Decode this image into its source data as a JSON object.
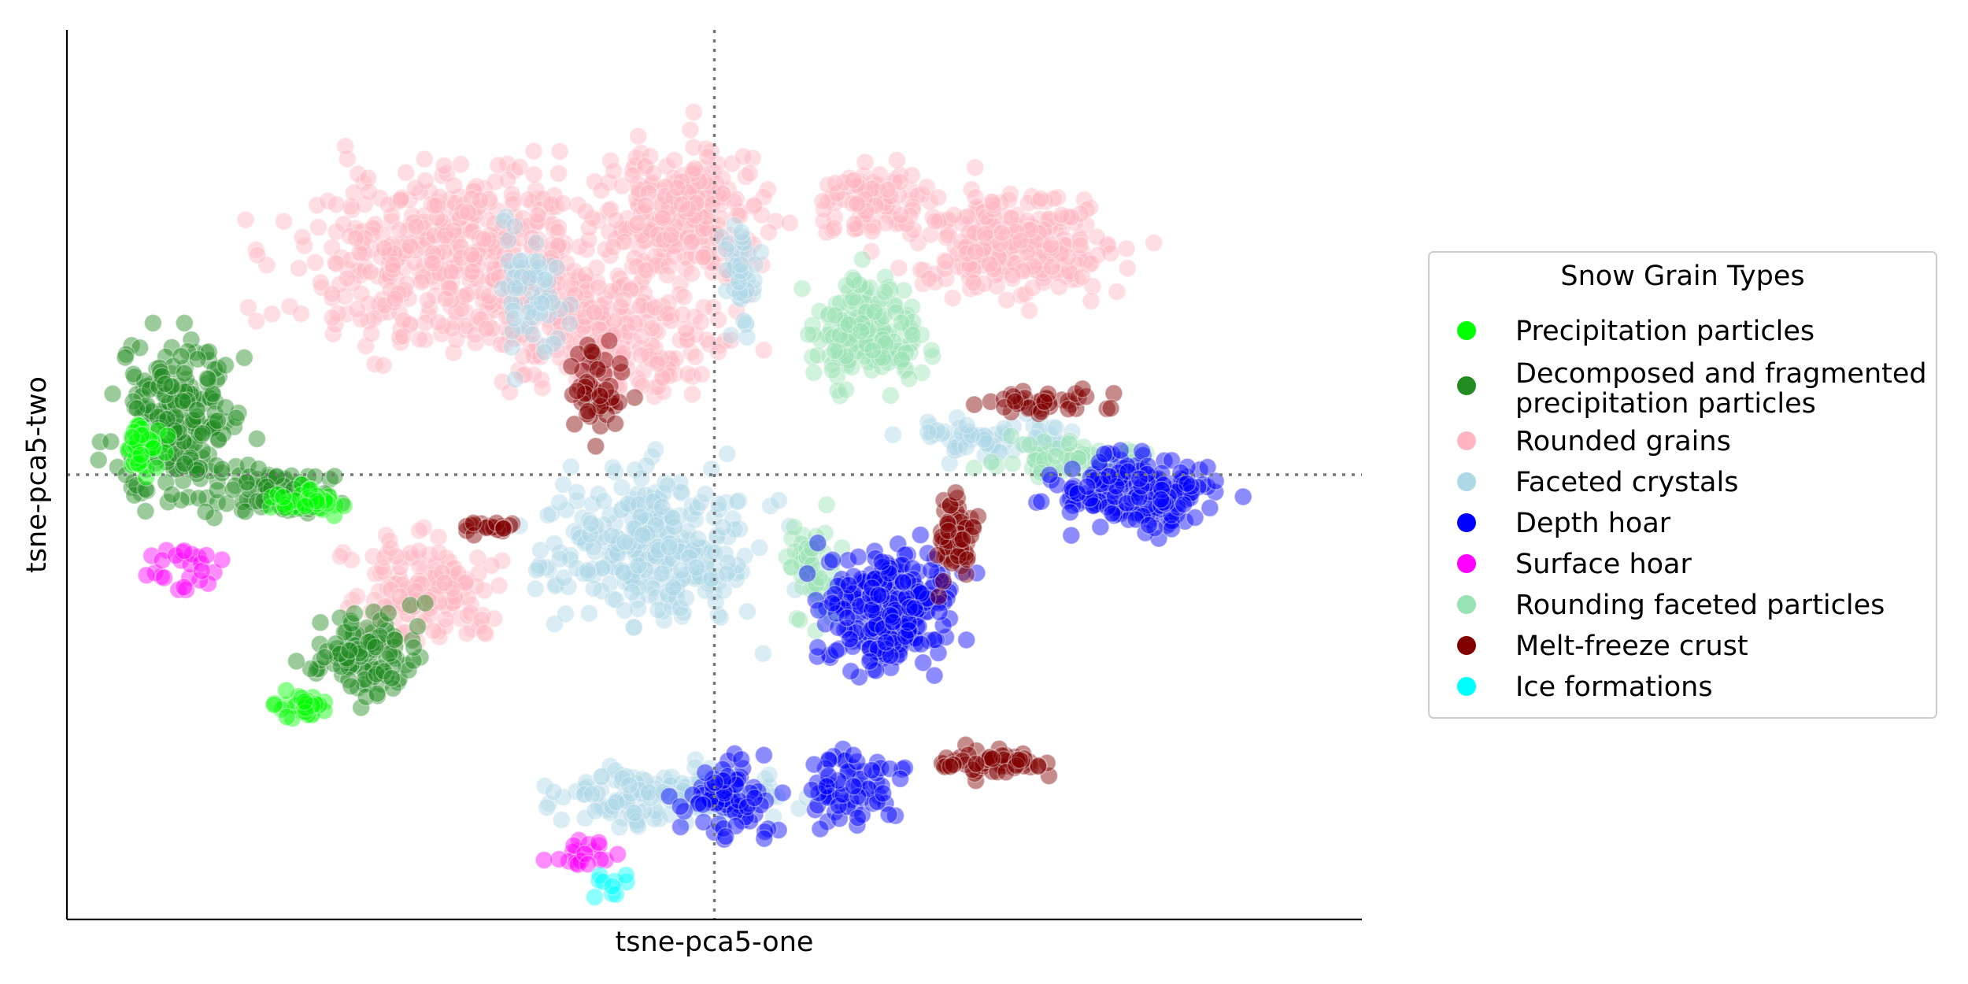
{
  "chart_data": {
    "type": "scatter",
    "title": "",
    "xlabel": "tsne-pca5-one",
    "ylabel": "tsne-pca5-two",
    "xlim": [
      -100,
      100
    ],
    "ylim": [
      -100,
      100
    ],
    "grid": false,
    "reference_lines": {
      "x": 0,
      "y": 0,
      "style": "dotted"
    },
    "legend": {
      "title": "Snow Grain Types",
      "position": "right",
      "entries": [
        {
          "label": "Precipitation particles",
          "color": "#00ff00"
        },
        {
          "label": "Decomposed and fragmented precipitation particles",
          "color": "#228b22"
        },
        {
          "label": "Rounded grains",
          "color": "#ffb6c1"
        },
        {
          "label": "Faceted crystals",
          "color": "#add8e6"
        },
        {
          "label": "Depth hoar",
          "color": "#0000ff"
        },
        {
          "label": "Surface hoar",
          "color": "#ff00ff"
        },
        {
          "label": "Rounding faceted particles",
          "color": "#98e2b3"
        },
        {
          "label": "Melt-freeze crust",
          "color": "#800000"
        },
        {
          "label": "Ice formations",
          "color": "#00ffff"
        }
      ]
    },
    "series": [
      {
        "class_index": 2,
        "regions": [
          {
            "center": [
              -38,
              48
            ],
            "spread": [
              26,
              20
            ],
            "count": 520
          },
          {
            "center": [
              -4,
              58
            ],
            "spread": [
              12,
              16
            ],
            "count": 260
          },
          {
            "center": [
              -15,
              30
            ],
            "spread": [
              16,
              12
            ],
            "count": 220
          },
          {
            "center": [
              46,
              52
            ],
            "spread": [
              16,
              12
            ],
            "count": 260
          },
          {
            "center": [
              24,
              62
            ],
            "spread": [
              8,
              8
            ],
            "count": 90
          },
          {
            "center": [
              -45,
              -26
            ],
            "spread": [
              12,
              12
            ],
            "count": 160
          }
        ]
      },
      {
        "class_index": 3,
        "regions": [
          {
            "center": [
              -10,
              -16
            ],
            "spread": [
              15,
              16
            ],
            "count": 300
          },
          {
            "center": [
              -8,
              -72
            ],
            "spread": [
              18,
              7
            ],
            "count": 140
          },
          {
            "center": [
              -28,
              42
            ],
            "spread": [
              5,
              16
            ],
            "count": 60
          },
          {
            "center": [
              44,
              8
            ],
            "spread": [
              14,
              5
            ],
            "count": 70
          },
          {
            "center": [
              4,
              45
            ],
            "spread": [
              3,
              12
            ],
            "count": 40
          }
        ]
      },
      {
        "class_index": 6,
        "regions": [
          {
            "center": [
              24,
              32
            ],
            "spread": [
              8,
              12
            ],
            "count": 170
          },
          {
            "center": [
              15,
              -22
            ],
            "spread": [
              4,
              12
            ],
            "count": 50
          },
          {
            "center": [
              55,
              4
            ],
            "spread": [
              12,
              4
            ],
            "count": 60
          }
        ]
      },
      {
        "class_index": 1,
        "regions": [
          {
            "center": [
              -83,
              12
            ],
            "spread": [
              9,
              18
            ],
            "count": 230
          },
          {
            "center": [
              -66,
              -4
            ],
            "spread": [
              8,
              5
            ],
            "count": 80
          },
          {
            "center": [
              -54,
              -40
            ],
            "spread": [
              9,
              10
            ],
            "count": 110
          }
        ]
      },
      {
        "class_index": 0,
        "regions": [
          {
            "center": [
              -88,
              6
            ],
            "spread": [
              3,
              5
            ],
            "count": 40
          },
          {
            "center": [
              -63,
              -6
            ],
            "spread": [
              5,
              3
            ],
            "count": 40
          },
          {
            "center": [
              -64,
              -52
            ],
            "spread": [
              5,
              3
            ],
            "count": 30
          }
        ]
      },
      {
        "class_index": 4,
        "regions": [
          {
            "center": [
              27,
              -30
            ],
            "spread": [
              10,
              13
            ],
            "count": 260
          },
          {
            "center": [
              66,
              -4
            ],
            "spread": [
              13,
              9
            ],
            "count": 170
          },
          {
            "center": [
              2,
              -72
            ],
            "spread": [
              7,
              9
            ],
            "count": 80
          },
          {
            "center": [
              22,
              -70
            ],
            "spread": [
              7,
              8
            ],
            "count": 70
          }
        ]
      },
      {
        "class_index": 7,
        "regions": [
          {
            "center": [
              37,
              -15
            ],
            "spread": [
              3,
              10
            ],
            "count": 70
          },
          {
            "center": [
              43,
              -65
            ],
            "spread": [
              9,
              3
            ],
            "count": 60
          },
          {
            "center": [
              -18,
              20
            ],
            "spread": [
              4,
              10
            ],
            "count": 50
          },
          {
            "center": [
              52,
              16
            ],
            "spread": [
              11,
              3
            ],
            "count": 40
          },
          {
            "center": [
              -35,
              -12
            ],
            "spread": [
              5,
              2
            ],
            "count": 20
          }
        ]
      },
      {
        "class_index": 5,
        "regions": [
          {
            "center": [
              -82,
              -20
            ],
            "spread": [
              6,
              6
            ],
            "count": 25
          },
          {
            "center": [
              -20,
              -86
            ],
            "spread": [
              5,
              4
            ],
            "count": 20
          }
        ]
      },
      {
        "class_index": 8,
        "regions": [
          {
            "center": [
              -16,
              -92
            ],
            "spread": [
              3,
              3
            ],
            "count": 10
          }
        ]
      }
    ]
  }
}
